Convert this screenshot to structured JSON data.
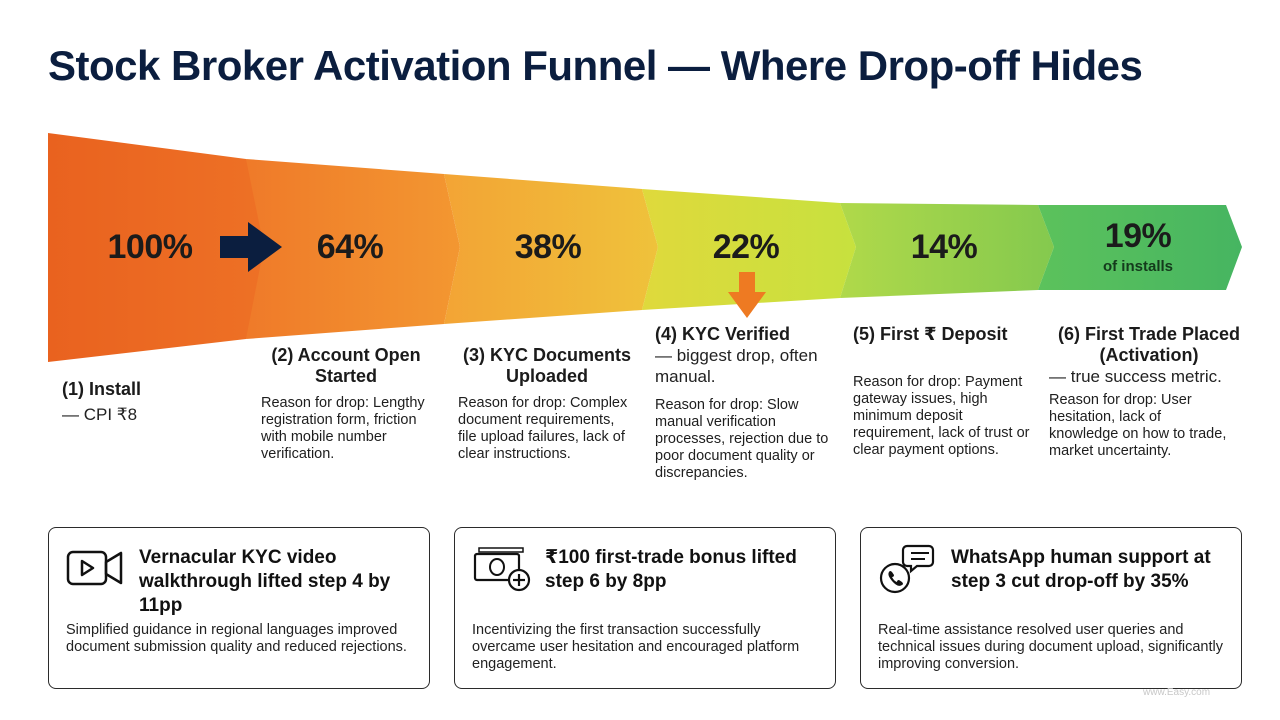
{
  "title": "Stock Broker Activation Funnel — Where Drop-off Hides",
  "stages": [
    {
      "pct": "100%",
      "label": "(1) Install",
      "sub": "— CPI ₹8",
      "reason": "",
      "color": "#ea6a21"
    },
    {
      "pct": "64%",
      "label": "(2) Account Open Started",
      "sub": "",
      "reason": "Reason for drop: Lengthy registration form, friction with mobile number verification.",
      "color": "#f08a2c"
    },
    {
      "pct": "38%",
      "label": "(3) KYC Documents Uploaded",
      "sub": "",
      "reason": "Reason for drop: Complex document requirements, file upload failures, lack of clear instructions.",
      "color": "#f2b23a"
    },
    {
      "pct": "22%",
      "label": "(4) KYC Verified",
      "sub": "— biggest drop, often manual.",
      "reason": "Reason for drop: Slow manual verification processes, rejection due to poor document quality or discrepancies.",
      "color": "#d9e23a"
    },
    {
      "pct": "14%",
      "label": "(5) First ₹ Deposit",
      "sub": "",
      "reason": "Reason for drop: Payment gateway issues, high minimum deposit requirement, lack of trust or clear payment options.",
      "color": "#9ed04b"
    },
    {
      "pct": "19%",
      "pct_sub": "of installs",
      "label": "(6) First Trade Placed (Activation)",
      "sub": "— true success metric.",
      "reason": "Reason for drop: User hesitation, lack of knowledge on how to trade, market uncertainty.",
      "color": "#4cbb5e"
    }
  ],
  "cards": [
    {
      "icon": "video-icon",
      "headline": "Vernacular KYC video walkthrough lifted step 4 by 11pp",
      "body": "Simplified guidance in regional languages improved document submission quality and reduced rejections."
    },
    {
      "icon": "cash-bonus-icon",
      "headline": "₹100 first-trade bonus lifted step 6 by 8pp",
      "body": "Incentivizing the first transaction successfully overcame user hesitation and encouraged platform engagement."
    },
    {
      "icon": "chat-support-icon",
      "headline": "WhatsApp human support at step 3 cut drop-off by 35%",
      "body": "Real-time assistance resolved user queries and technical issues during document upload, significantly improving conversion."
    }
  ],
  "colors": {
    "title": "#0b1e3f",
    "arrow_dark": "#0b1e3f",
    "arrow_orange": "#ee7a22"
  },
  "watermark": "www.Easy.com"
}
